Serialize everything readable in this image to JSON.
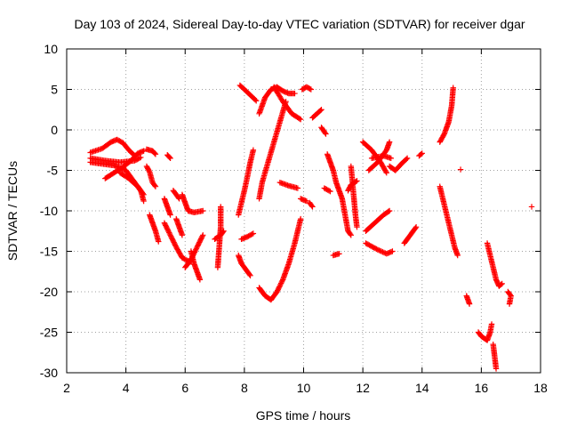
{
  "chart_data": {
    "type": "scatter",
    "title": "Day 103 of 2024, Sidereal Day-to-day VTEC variation (SDTVAR) for receiver dgar",
    "xlabel": "GPS time / hours",
    "ylabel": "SDTVAR / TECUs",
    "xlim": [
      2,
      18
    ],
    "ylim": [
      -30,
      10
    ],
    "xticks": [
      2,
      4,
      6,
      8,
      10,
      12,
      14,
      16,
      18
    ],
    "yticks": [
      10,
      5,
      0,
      -5,
      -10,
      -15,
      -20,
      -25,
      -30
    ],
    "grid": true,
    "marker": "+",
    "color": "#ff0000",
    "segments": [
      [
        [
          2.8,
          -2.8
        ],
        [
          3.2,
          -2.3
        ],
        [
          3.5,
          -1.5
        ],
        [
          3.7,
          -1.2
        ],
        [
          3.9,
          -1.6
        ],
        [
          4.1,
          -2.5
        ],
        [
          4.3,
          -3.2
        ]
      ],
      [
        [
          2.8,
          -3.5
        ],
        [
          3.3,
          -3.8
        ],
        [
          3.8,
          -4.0
        ],
        [
          4.3,
          -3.8
        ],
        [
          4.5,
          -3.4
        ]
      ],
      [
        [
          2.8,
          -4.0
        ],
        [
          3.2,
          -4.2
        ],
        [
          3.6,
          -4.4
        ],
        [
          4.0,
          -5.0
        ],
        [
          4.3,
          -6.5
        ],
        [
          4.5,
          -7.5
        ],
        [
          4.6,
          -8.8
        ]
      ],
      [
        [
          3.3,
          -6.0
        ],
        [
          3.6,
          -5.3
        ],
        [
          3.9,
          -4.6
        ],
        [
          4.2,
          -3.7
        ],
        [
          4.4,
          -2.9
        ],
        [
          4.6,
          -2.6
        ]
      ],
      [
        [
          3.8,
          -5.3
        ],
        [
          4.1,
          -6.0
        ],
        [
          4.4,
          -7.0
        ],
        [
          4.6,
          -8.0
        ]
      ],
      [
        [
          4.7,
          -2.4
        ],
        [
          4.9,
          -2.6
        ],
        [
          5.0,
          -3.0
        ]
      ],
      [
        [
          4.7,
          -4.5
        ],
        [
          4.8,
          -5.2
        ],
        [
          4.9,
          -6.5
        ],
        [
          5.0,
          -7.0
        ]
      ],
      [
        [
          5.4,
          -3.1
        ],
        [
          5.5,
          -3.5
        ]
      ],
      [
        [
          4.8,
          -10.5
        ],
        [
          4.9,
          -11.5
        ],
        [
          5.0,
          -12.5
        ],
        [
          5.1,
          -13.8
        ]
      ],
      [
        [
          5.3,
          -8.5
        ],
        [
          5.4,
          -9.5
        ],
        [
          5.5,
          -10.5
        ]
      ],
      [
        [
          5.3,
          -11.5
        ],
        [
          5.5,
          -13.0
        ],
        [
          5.7,
          -14.5
        ],
        [
          5.9,
          -15.8
        ],
        [
          6.1,
          -16.2
        ],
        [
          6.2,
          -16.3
        ]
      ],
      [
        [
          5.6,
          -7.5
        ],
        [
          5.8,
          -8.5
        ]
      ],
      [
        [
          5.7,
          -11.0
        ],
        [
          5.8,
          -12.0
        ],
        [
          5.9,
          -13.0
        ]
      ],
      [
        [
          5.9,
          -8.0
        ],
        [
          6.0,
          -9.0
        ],
        [
          6.1,
          -10.0
        ],
        [
          6.3,
          -10.2
        ],
        [
          6.6,
          -10.0
        ]
      ],
      [
        [
          6.0,
          -17.0
        ],
        [
          6.2,
          -16.0
        ],
        [
          6.4,
          -14.5
        ],
        [
          6.6,
          -13.0
        ]
      ],
      [
        [
          6.2,
          -15.0
        ],
        [
          6.3,
          -16.5
        ],
        [
          6.4,
          -17.5
        ],
        [
          6.5,
          -18.5
        ]
      ],
      [
        [
          7.0,
          -13.5
        ],
        [
          7.2,
          -13.0
        ],
        [
          7.3,
          -12.5
        ]
      ],
      [
        [
          7.2,
          -9.5
        ],
        [
          7.2,
          -12.0
        ],
        [
          7.15,
          -14.5
        ],
        [
          7.1,
          -17.0
        ]
      ],
      [
        [
          7.85,
          5.5
        ],
        [
          8.0,
          5.0
        ],
        [
          8.2,
          4.3
        ],
        [
          8.4,
          3.6
        ]
      ],
      [
        [
          7.8,
          -10.5
        ],
        [
          7.9,
          -9.0
        ],
        [
          8.0,
          -7.5
        ],
        [
          8.1,
          -5.8
        ],
        [
          8.2,
          -4.0
        ],
        [
          8.3,
          -2.5
        ]
      ],
      [
        [
          7.9,
          -13.5
        ],
        [
          8.1,
          -13.2
        ],
        [
          8.3,
          -12.8
        ]
      ],
      [
        [
          7.8,
          -15.5
        ],
        [
          7.9,
          -16.5
        ],
        [
          8.1,
          -17.5
        ],
        [
          8.2,
          -18.0
        ]
      ],
      [
        [
          8.5,
          -8.5
        ],
        [
          8.6,
          -6.5
        ],
        [
          8.8,
          -4.0
        ],
        [
          9.0,
          -1.5
        ],
        [
          9.2,
          1.0
        ],
        [
          9.4,
          3.5
        ]
      ],
      [
        [
          8.5,
          2.0
        ],
        [
          8.7,
          4.0
        ],
        [
          8.9,
          5.0
        ],
        [
          9.1,
          5.3
        ],
        [
          9.3,
          4.8
        ],
        [
          9.5,
          4.5
        ],
        [
          9.7,
          4.5
        ]
      ],
      [
        [
          8.5,
          -19.5
        ],
        [
          8.7,
          -20.5
        ],
        [
          8.9,
          -21.0
        ],
        [
          9.1,
          -20.0
        ],
        [
          9.3,
          -18.5
        ],
        [
          9.5,
          -16.5
        ],
        [
          9.7,
          -14.0
        ],
        [
          9.9,
          -11.0
        ]
      ],
      [
        [
          9.0,
          5.3
        ],
        [
          9.3,
          3.5
        ],
        [
          9.6,
          2.0
        ],
        [
          9.9,
          1.3
        ]
      ],
      [
        [
          9.2,
          -6.5
        ],
        [
          9.5,
          -6.9
        ],
        [
          9.8,
          -7.2
        ]
      ],
      [
        [
          9.9,
          -8.5
        ],
        [
          10.1,
          -8.8
        ]
      ],
      [
        [
          9.95,
          5.0
        ],
        [
          10.1,
          5.3
        ],
        [
          10.25,
          5.0
        ]
      ],
      [
        [
          10.2,
          -9.0
        ],
        [
          10.3,
          -9.5
        ]
      ],
      [
        [
          10.3,
          1.5
        ],
        [
          10.45,
          2.0
        ],
        [
          10.6,
          2.5
        ]
      ],
      [
        [
          10.6,
          0.3
        ],
        [
          10.75,
          -0.5
        ]
      ],
      [
        [
          10.7,
          -7.2
        ],
        [
          10.9,
          -7.6
        ]
      ],
      [
        [
          10.8,
          -3.0
        ],
        [
          10.9,
          -4.0
        ],
        [
          11.0,
          -5.0
        ],
        [
          11.1,
          -6.5
        ],
        [
          11.2,
          -7.5
        ],
        [
          11.3,
          -8.5
        ],
        [
          11.4,
          -10.5
        ],
        [
          11.5,
          -12.5
        ],
        [
          11.6,
          -13.0
        ]
      ],
      [
        [
          11.0,
          -15.5
        ],
        [
          11.2,
          -15.3
        ]
      ],
      [
        [
          11.6,
          -4.5
        ],
        [
          11.7,
          -8.5
        ],
        [
          11.75,
          -10.5
        ],
        [
          11.8,
          -12.0
        ]
      ],
      [
        [
          11.5,
          -7.5
        ],
        [
          11.6,
          -6.8
        ],
        [
          11.8,
          -6.3
        ]
      ],
      [
        [
          12.0,
          -1.5
        ],
        [
          12.3,
          -2.5
        ],
        [
          12.6,
          -4.0
        ],
        [
          12.8,
          -5.3
        ]
      ],
      [
        [
          12.1,
          -12.5
        ],
        [
          12.4,
          -11.5
        ],
        [
          12.7,
          -10.5
        ],
        [
          12.9,
          -10.0
        ]
      ],
      [
        [
          12.1,
          -14.0
        ],
        [
          12.5,
          -14.8
        ],
        [
          12.8,
          -15.3
        ],
        [
          13.0,
          -15.0
        ]
      ],
      [
        [
          12.2,
          -5.0
        ],
        [
          12.5,
          -4.0
        ],
        [
          12.8,
          -2.5
        ],
        [
          12.9,
          -1.5
        ]
      ],
      [
        [
          12.3,
          -3.5
        ],
        [
          12.7,
          -3.2
        ],
        [
          12.95,
          -3.5
        ]
      ],
      [
        [
          12.9,
          -4.5
        ],
        [
          13.1,
          -5.0
        ],
        [
          13.3,
          -4.2
        ],
        [
          13.5,
          -3.5
        ]
      ],
      [
        [
          13.4,
          -14.0
        ],
        [
          13.6,
          -13.0
        ],
        [
          13.8,
          -12.0
        ]
      ],
      [
        [
          13.9,
          -3.2
        ],
        [
          14.0,
          -2.9
        ]
      ],
      [
        [
          14.6,
          -1.5
        ],
        [
          14.75,
          -0.5
        ],
        [
          14.9,
          1.0
        ],
        [
          15.0,
          3.0
        ],
        [
          15.05,
          5.2
        ]
      ],
      [
        [
          14.6,
          -7.0
        ],
        [
          14.7,
          -8.5
        ],
        [
          14.8,
          -10.0
        ],
        [
          14.9,
          -11.5
        ],
        [
          15.0,
          -13.0
        ],
        [
          15.1,
          -14.5
        ],
        [
          15.2,
          -15.5
        ]
      ],
      [
        [
          15.3,
          -4.9
        ]
      ],
      [
        [
          15.5,
          -20.5
        ],
        [
          15.6,
          -21.5
        ]
      ],
      [
        [
          15.9,
          -25.0
        ],
        [
          16.0,
          -25.5
        ],
        [
          16.2,
          -26.0
        ],
        [
          16.3,
          -25.0
        ],
        [
          16.35,
          -24.0
        ]
      ],
      [
        [
          16.2,
          -14.0
        ],
        [
          16.3,
          -15.5
        ],
        [
          16.4,
          -17.0
        ],
        [
          16.5,
          -18.5
        ],
        [
          16.6,
          -19.3
        ],
        [
          16.7,
          -19.0
        ]
      ],
      [
        [
          16.4,
          -26.5
        ],
        [
          16.45,
          -28.0
        ],
        [
          16.5,
          -29.5
        ]
      ],
      [
        [
          16.9,
          -20.0
        ],
        [
          17.0,
          -20.5
        ],
        [
          16.95,
          -21.5
        ]
      ],
      [
        [
          17.7,
          -9.5
        ]
      ]
    ]
  }
}
